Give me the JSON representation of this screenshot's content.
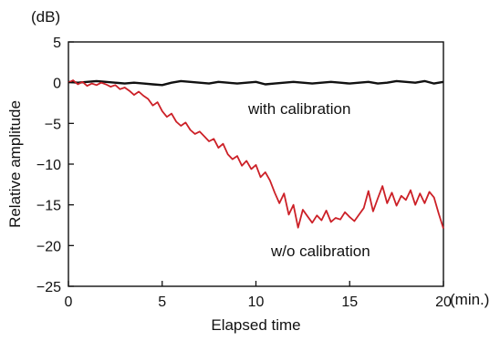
{
  "chart_data": {
    "type": "line",
    "xlabel": "Elapsed time",
    "ylabel": "Relative amplitude",
    "y_unit_label": "(dB)",
    "x_unit_label": "(min.)",
    "xlim": [
      0,
      20
    ],
    "ylim": [
      -25,
      5
    ],
    "x_ticks": [
      0,
      5,
      10,
      15,
      20
    ],
    "x_tick_labels": [
      "0",
      "5",
      "10",
      "15",
      "20"
    ],
    "y_ticks": [
      5,
      0,
      -5,
      -10,
      -15,
      -20,
      -25
    ],
    "y_tick_labels": [
      "5",
      "0",
      "−5",
      "−10",
      "−15",
      "−20",
      "−25"
    ],
    "grid": false,
    "legend": "none",
    "annotations": [
      {
        "text": "with calibration",
        "x": 11.8,
        "y": -3.4
      },
      {
        "text": "w/o calibration",
        "x": 11.0,
        "y": -20.9
      }
    ],
    "series": [
      {
        "name": "with calibration",
        "color": "#111111",
        "x": [
          0,
          0.5,
          1,
          1.5,
          2,
          2.5,
          3,
          3.5,
          4,
          4.5,
          5,
          5.5,
          6,
          6.5,
          7,
          7.5,
          8,
          8.5,
          9,
          9.5,
          10,
          10.5,
          11,
          11.5,
          12,
          12.5,
          13,
          13.5,
          14,
          14.5,
          15,
          15.5,
          16,
          16.5,
          17,
          17.5,
          18,
          18.5,
          19,
          19.5,
          20
        ],
        "y": [
          0.1,
          0.0,
          0.1,
          0.2,
          0.1,
          0.0,
          -0.1,
          0.0,
          -0.1,
          -0.2,
          -0.3,
          0.0,
          0.2,
          0.1,
          0.0,
          -0.1,
          0.1,
          0.0,
          -0.1,
          0.0,
          0.1,
          -0.2,
          -0.1,
          0.0,
          0.1,
          0.0,
          -0.1,
          0.0,
          0.1,
          0.0,
          -0.1,
          0.0,
          0.1,
          -0.1,
          0.0,
          0.2,
          0.1,
          0.0,
          0.2,
          -0.1,
          0.1
        ]
      },
      {
        "name": "w/o calibration",
        "color": "#cc2027",
        "x": [
          0,
          0.25,
          0.5,
          0.75,
          1,
          1.25,
          1.5,
          1.75,
          2,
          2.25,
          2.5,
          2.75,
          3,
          3.25,
          3.5,
          3.75,
          4,
          4.25,
          4.5,
          4.75,
          5,
          5.25,
          5.5,
          5.75,
          6,
          6.25,
          6.5,
          6.75,
          7,
          7.25,
          7.5,
          7.75,
          8,
          8.25,
          8.5,
          8.75,
          9,
          9.25,
          9.5,
          9.75,
          10,
          10.25,
          10.5,
          10.75,
          11,
          11.25,
          11.5,
          11.75,
          12,
          12.25,
          12.5,
          12.75,
          13,
          13.25,
          13.5,
          13.75,
          14,
          14.25,
          14.5,
          14.75,
          15,
          15.25,
          15.5,
          15.75,
          16,
          16.25,
          16.5,
          16.75,
          17,
          17.25,
          17.5,
          17.75,
          18,
          18.25,
          18.5,
          18.75,
          19,
          19.25,
          19.5,
          19.75,
          20
        ],
        "y": [
          0.0,
          0.3,
          -0.2,
          0.1,
          -0.4,
          -0.1,
          -0.3,
          0.0,
          -0.2,
          -0.5,
          -0.3,
          -0.8,
          -0.6,
          -1.0,
          -1.5,
          -1.1,
          -1.6,
          -2.0,
          -2.8,
          -2.4,
          -3.5,
          -4.2,
          -3.8,
          -4.8,
          -5.3,
          -4.9,
          -5.8,
          -6.3,
          -6.0,
          -6.6,
          -7.2,
          -6.9,
          -8.0,
          -7.5,
          -8.8,
          -9.4,
          -9.0,
          -10.2,
          -9.6,
          -10.6,
          -10.1,
          -11.6,
          -11.0,
          -12.0,
          -13.5,
          -14.8,
          -13.6,
          -16.2,
          -15.0,
          -17.8,
          -15.6,
          -16.4,
          -17.2,
          -16.3,
          -16.9,
          -15.7,
          -17.1,
          -16.6,
          -16.8,
          -15.9,
          -16.5,
          -17.0,
          -16.2,
          -15.4,
          -13.3,
          -15.8,
          -14.2,
          -12.7,
          -14.8,
          -13.5,
          -15.1,
          -13.9,
          -14.4,
          -13.2,
          -15.0,
          -13.6,
          -14.8,
          -13.4,
          -14.1,
          -16.1,
          -17.9
        ]
      }
    ]
  }
}
